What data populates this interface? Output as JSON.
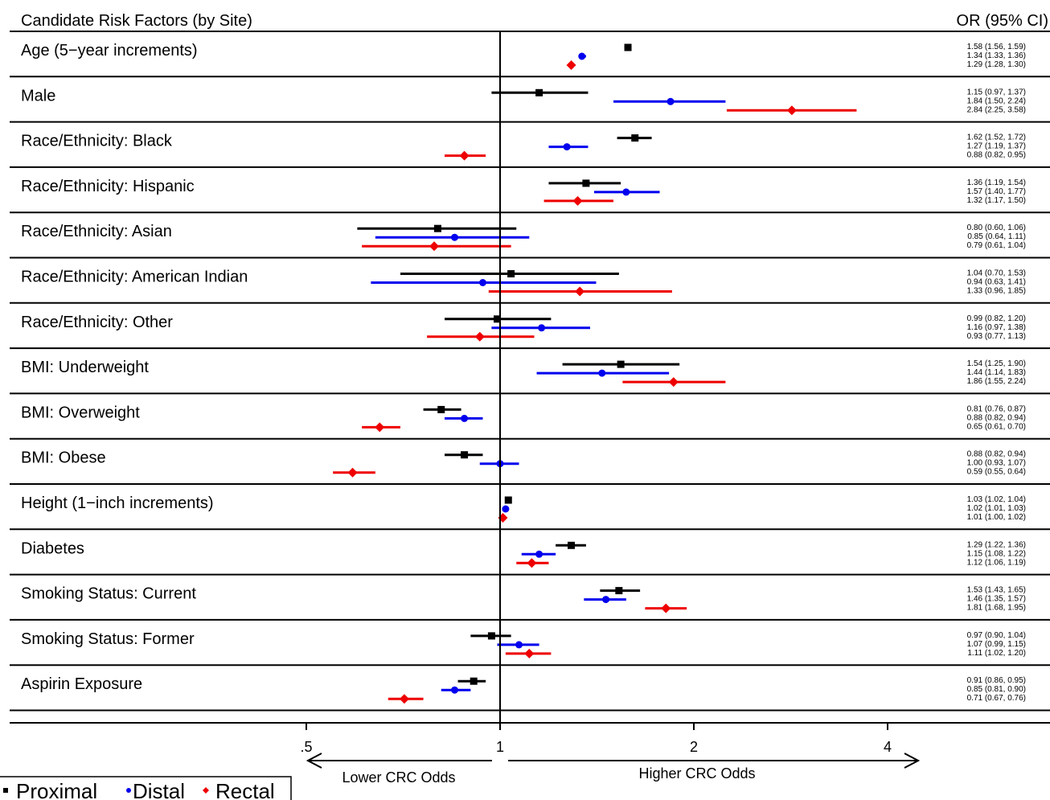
{
  "chart_data": {
    "type": "forest",
    "header_left": "Candidate Risk Factors (by Site)",
    "header_right": "OR (95% CI)",
    "x_scale": "log",
    "xlim": [
      0.5,
      4
    ],
    "ticks": [
      {
        "value": 0.5,
        "label": ".5"
      },
      {
        "value": 1,
        "label": "1"
      },
      {
        "value": 2,
        "label": "2"
      },
      {
        "value": 4,
        "label": "4"
      }
    ],
    "reference_line": 1,
    "direction_left": "Lower CRC Odds",
    "direction_right": "Higher CRC Odds",
    "series": [
      {
        "name": "Proximal",
        "color": "#000000",
        "marker": "square"
      },
      {
        "name": "Distal",
        "color": "#0000ee",
        "marker": "circle"
      },
      {
        "name": "Rectal",
        "color": "#ee0000",
        "marker": "diamond"
      }
    ],
    "legend": {
      "position": "bottom-left",
      "entries": [
        "Proximal",
        "Distal",
        "Rectal"
      ]
    },
    "factors": [
      {
        "label": "Age (5−year increments)",
        "values": [
          [
            1.58,
            1.56,
            1.59
          ],
          [
            1.34,
            1.33,
            1.36
          ],
          [
            1.29,
            1.28,
            1.3
          ]
        ],
        "texts": [
          "1.58 (1.56, 1.59)",
          "1.34 (1.33, 1.36)",
          "1.29 (1.28, 1.30)"
        ]
      },
      {
        "label": "Male",
        "values": [
          [
            1.15,
            0.97,
            1.37
          ],
          [
            1.84,
            1.5,
            2.24
          ],
          [
            2.84,
            2.25,
            3.58
          ]
        ],
        "texts": [
          "1.15 (0.97, 1.37)",
          "1.84 (1.50, 2.24)",
          "2.84 (2.25, 3.58)"
        ]
      },
      {
        "label": "Race/Ethnicity: Black",
        "values": [
          [
            1.62,
            1.52,
            1.72
          ],
          [
            1.27,
            1.19,
            1.37
          ],
          [
            0.88,
            0.82,
            0.95
          ]
        ],
        "texts": [
          "1.62 (1.52, 1.72)",
          "1.27 (1.19, 1.37)",
          "0.88 (0.82, 0.95)"
        ]
      },
      {
        "label": "Race/Ethnicity: Hispanic",
        "values": [
          [
            1.36,
            1.19,
            1.54
          ],
          [
            1.57,
            1.4,
            1.77
          ],
          [
            1.32,
            1.17,
            1.5
          ]
        ],
        "texts": [
          "1.36 (1.19, 1.54)",
          "1.57 (1.40, 1.77)",
          "1.32 (1.17, 1.50)"
        ]
      },
      {
        "label": "Race/Ethnicity: Asian",
        "values": [
          [
            0.8,
            0.6,
            1.06
          ],
          [
            0.85,
            0.64,
            1.11
          ],
          [
            0.79,
            0.61,
            1.04
          ]
        ],
        "texts": [
          "0.80 (0.60, 1.06)",
          "0.85 (0.64, 1.11)",
          "0.79 (0.61, 1.04)"
        ]
      },
      {
        "label": "Race/Ethnicity: American Indian",
        "values": [
          [
            1.04,
            0.7,
            1.53
          ],
          [
            0.94,
            0.63,
            1.41
          ],
          [
            1.33,
            0.96,
            1.85
          ]
        ],
        "texts": [
          "1.04 (0.70, 1.53)",
          "0.94 (0.63, 1.41)",
          "1.33 (0.96, 1.85)"
        ]
      },
      {
        "label": "Race/Ethnicity: Other",
        "values": [
          [
            0.99,
            0.82,
            1.2
          ],
          [
            1.16,
            0.97,
            1.38
          ],
          [
            0.93,
            0.77,
            1.13
          ]
        ],
        "texts": [
          "0.99 (0.82, 1.20)",
          "1.16 (0.97, 1.38)",
          "0.93 (0.77, 1.13)"
        ]
      },
      {
        "label": "BMI: Underweight",
        "values": [
          [
            1.54,
            1.25,
            1.9
          ],
          [
            1.44,
            1.14,
            1.83
          ],
          [
            1.86,
            1.55,
            2.24
          ]
        ],
        "texts": [
          "1.54 (1.25, 1.90)",
          "1.44 (1.14, 1.83)",
          "1.86 (1.55, 2.24)"
        ]
      },
      {
        "label": "BMI: Overweight",
        "values": [
          [
            0.81,
            0.76,
            0.87
          ],
          [
            0.88,
            0.82,
            0.94
          ],
          [
            0.65,
            0.61,
            0.7
          ]
        ],
        "texts": [
          "0.81 (0.76, 0.87)",
          "0.88 (0.82, 0.94)",
          "0.65 (0.61, 0.70)"
        ]
      },
      {
        "label": "BMI: Obese",
        "values": [
          [
            0.88,
            0.82,
            0.94
          ],
          [
            1.0,
            0.93,
            1.07
          ],
          [
            0.59,
            0.55,
            0.64
          ]
        ],
        "texts": [
          "0.88 (0.82, 0.94)",
          "1.00 (0.93, 1.07)",
          "0.59 (0.55, 0.64)"
        ]
      },
      {
        "label": "Height (1−inch increments)",
        "values": [
          [
            1.03,
            1.02,
            1.04
          ],
          [
            1.02,
            1.01,
            1.03
          ],
          [
            1.01,
            1.0,
            1.02
          ]
        ],
        "texts": [
          "1.03 (1.02, 1.04)",
          "1.02 (1.01, 1.03)",
          "1.01 (1.00, 1.02)"
        ]
      },
      {
        "label": "Diabetes",
        "values": [
          [
            1.29,
            1.22,
            1.36
          ],
          [
            1.15,
            1.08,
            1.22
          ],
          [
            1.12,
            1.06,
            1.19
          ]
        ],
        "texts": [
          "1.29 (1.22, 1.36)",
          "1.15 (1.08, 1.22)",
          "1.12 (1.06, 1.19)"
        ]
      },
      {
        "label": "Smoking Status: Current",
        "values": [
          [
            1.53,
            1.43,
            1.65
          ],
          [
            1.46,
            1.35,
            1.57
          ],
          [
            1.81,
            1.68,
            1.95
          ]
        ],
        "texts": [
          "1.53 (1.43, 1.65)",
          "1.46 (1.35, 1.57)",
          "1.81 (1.68, 1.95)"
        ]
      },
      {
        "label": "Smoking Status: Former",
        "values": [
          [
            0.97,
            0.9,
            1.04
          ],
          [
            1.07,
            0.99,
            1.15
          ],
          [
            1.11,
            1.02,
            1.2
          ]
        ],
        "texts": [
          "0.97 (0.90, 1.04)",
          "1.07 (0.99, 1.15)",
          "1.11 (1.02, 1.20)"
        ]
      },
      {
        "label": "Aspirin Exposure",
        "values": [
          [
            0.91,
            0.86,
            0.95
          ],
          [
            0.85,
            0.81,
            0.9
          ],
          [
            0.71,
            0.67,
            0.76
          ]
        ],
        "texts": [
          "0.91 (0.86, 0.95)",
          "0.85 (0.81, 0.90)",
          "0.71 (0.67, 0.76)"
        ]
      }
    ]
  }
}
